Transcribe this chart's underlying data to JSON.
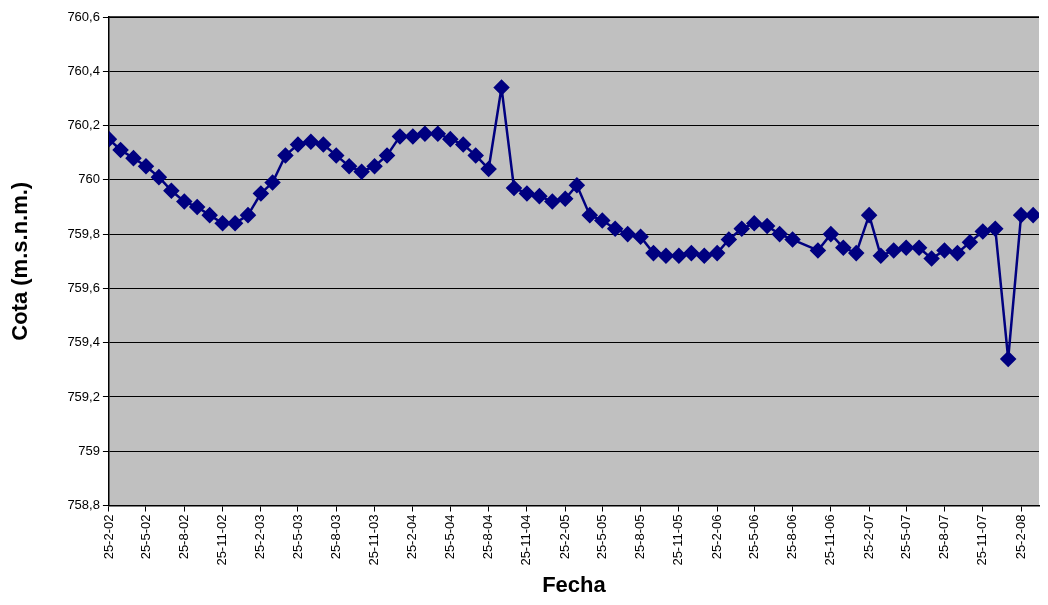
{
  "chart_data": {
    "type": "line",
    "xlabel": "Fecha",
    "ylabel": "Cota (m.s.n.m.)",
    "x": [
      "2002-02-25",
      "2002-03-25",
      "2002-04-25",
      "2002-05-25",
      "2002-06-25",
      "2002-07-25",
      "2002-08-25",
      "2002-09-25",
      "2002-10-25",
      "2002-11-25",
      "2002-12-25",
      "2003-01-25",
      "2003-02-25",
      "2003-03-25",
      "2003-04-25",
      "2003-05-25",
      "2003-06-25",
      "2003-07-25",
      "2003-08-25",
      "2003-09-25",
      "2003-10-25",
      "2003-11-25",
      "2003-12-25",
      "2004-01-25",
      "2004-02-25",
      "2004-03-25",
      "2004-04-25",
      "2004-05-25",
      "2004-06-25",
      "2004-07-25",
      "2004-08-25",
      "2004-09-25",
      "2004-10-25",
      "2004-11-25",
      "2004-12-25",
      "2005-01-25",
      "2005-02-25",
      "2005-03-25",
      "2005-04-25",
      "2005-05-25",
      "2005-06-25",
      "2005-07-25",
      "2005-08-25",
      "2005-09-25",
      "2005-10-25",
      "2005-11-25",
      "2005-12-25",
      "2006-01-25",
      "2006-02-25",
      "2006-03-25",
      "2006-04-25",
      "2006-05-25",
      "2006-06-25",
      "2006-07-25",
      "2006-08-25",
      "2006-10-25",
      "2006-11-25",
      "2006-12-25",
      "2007-01-25",
      "2007-02-25",
      "2007-03-25",
      "2007-04-25",
      "2007-05-25",
      "2007-06-25",
      "2007-07-25",
      "2007-08-25",
      "2007-09-25",
      "2007-10-25",
      "2007-11-25",
      "2007-12-25",
      "2008-01-25",
      "2008-02-25",
      "2008-03-25"
    ],
    "series": [
      {
        "color": "#000080",
        "values": [
          760.15,
          760.11,
          760.08,
          760.05,
          760.01,
          759.96,
          759.92,
          759.9,
          759.87,
          759.84,
          759.84,
          759.87,
          759.95,
          759.99,
          760.09,
          760.13,
          760.14,
          760.13,
          760.09,
          760.05,
          760.03,
          760.05,
          760.09,
          760.16,
          760.16,
          760.17,
          760.17,
          760.15,
          760.13,
          760.09,
          760.04,
          760.34,
          759.97,
          759.95,
          759.94,
          759.92,
          759.93,
          759.98,
          759.87,
          759.85,
          759.82,
          759.8,
          759.79,
          759.73,
          759.72,
          759.72,
          759.73,
          759.72,
          759.73,
          759.78,
          759.82,
          759.84,
          759.83,
          759.8,
          759.78,
          759.74,
          759.8,
          759.75,
          759.73,
          759.87,
          759.72,
          759.74,
          759.75,
          759.75,
          759.71,
          759.74,
          759.73,
          759.77,
          759.81,
          759.82,
          759.34,
          759.87,
          759.87
        ]
      }
    ],
    "xlim": [
      "2002-02-25",
      "2008-04-08"
    ],
    "xticks": [
      {
        "value": "2002-02-25",
        "label": "25-2-02"
      },
      {
        "value": "2002-05-25",
        "label": "25-5-02"
      },
      {
        "value": "2002-08-25",
        "label": "25-8-02"
      },
      {
        "value": "2002-11-25",
        "label": "25-11-02"
      },
      {
        "value": "2003-02-25",
        "label": "25-2-03"
      },
      {
        "value": "2003-05-25",
        "label": "25-5-03"
      },
      {
        "value": "2003-08-25",
        "label": "25-8-03"
      },
      {
        "value": "2003-11-25",
        "label": "25-11-03"
      },
      {
        "value": "2004-02-25",
        "label": "25-2-04"
      },
      {
        "value": "2004-05-25",
        "label": "25-5-04"
      },
      {
        "value": "2004-08-25",
        "label": "25-8-04"
      },
      {
        "value": "2004-11-25",
        "label": "25-11-04"
      },
      {
        "value": "2005-02-25",
        "label": "25-2-05"
      },
      {
        "value": "2005-05-25",
        "label": "25-5-05"
      },
      {
        "value": "2005-08-25",
        "label": "25-8-05"
      },
      {
        "value": "2005-11-25",
        "label": "25-11-05"
      },
      {
        "value": "2006-02-25",
        "label": "25-2-06"
      },
      {
        "value": "2006-05-25",
        "label": "25-5-06"
      },
      {
        "value": "2006-08-25",
        "label": "25-8-06"
      },
      {
        "value": "2006-11-25",
        "label": "25-11-06"
      },
      {
        "value": "2007-02-25",
        "label": "25-2-07"
      },
      {
        "value": "2007-05-25",
        "label": "25-5-07"
      },
      {
        "value": "2007-08-25",
        "label": "25-8-07"
      },
      {
        "value": "2007-11-25",
        "label": "25-11-07"
      },
      {
        "value": "2008-02-25",
        "label": "25-2-08"
      }
    ],
    "ylim": [
      758.8,
      760.6
    ],
    "yticks": [
      {
        "value": 758.8,
        "label": "758,8"
      },
      759,
      {
        "value": 759.2,
        "label": "759,2"
      },
      {
        "value": 759.4,
        "label": "759,4"
      },
      {
        "value": 759.6,
        "label": "759,6"
      },
      {
        "value": 759.8,
        "label": "759,8"
      },
      760,
      {
        "value": 760.2,
        "label": "760,2"
      },
      {
        "value": 760.4,
        "label": "760,4"
      },
      {
        "value": 760.6,
        "label": "760,6"
      }
    ],
    "grid": "y",
    "legend": false,
    "marker": "diamond",
    "line_style": "solid"
  }
}
